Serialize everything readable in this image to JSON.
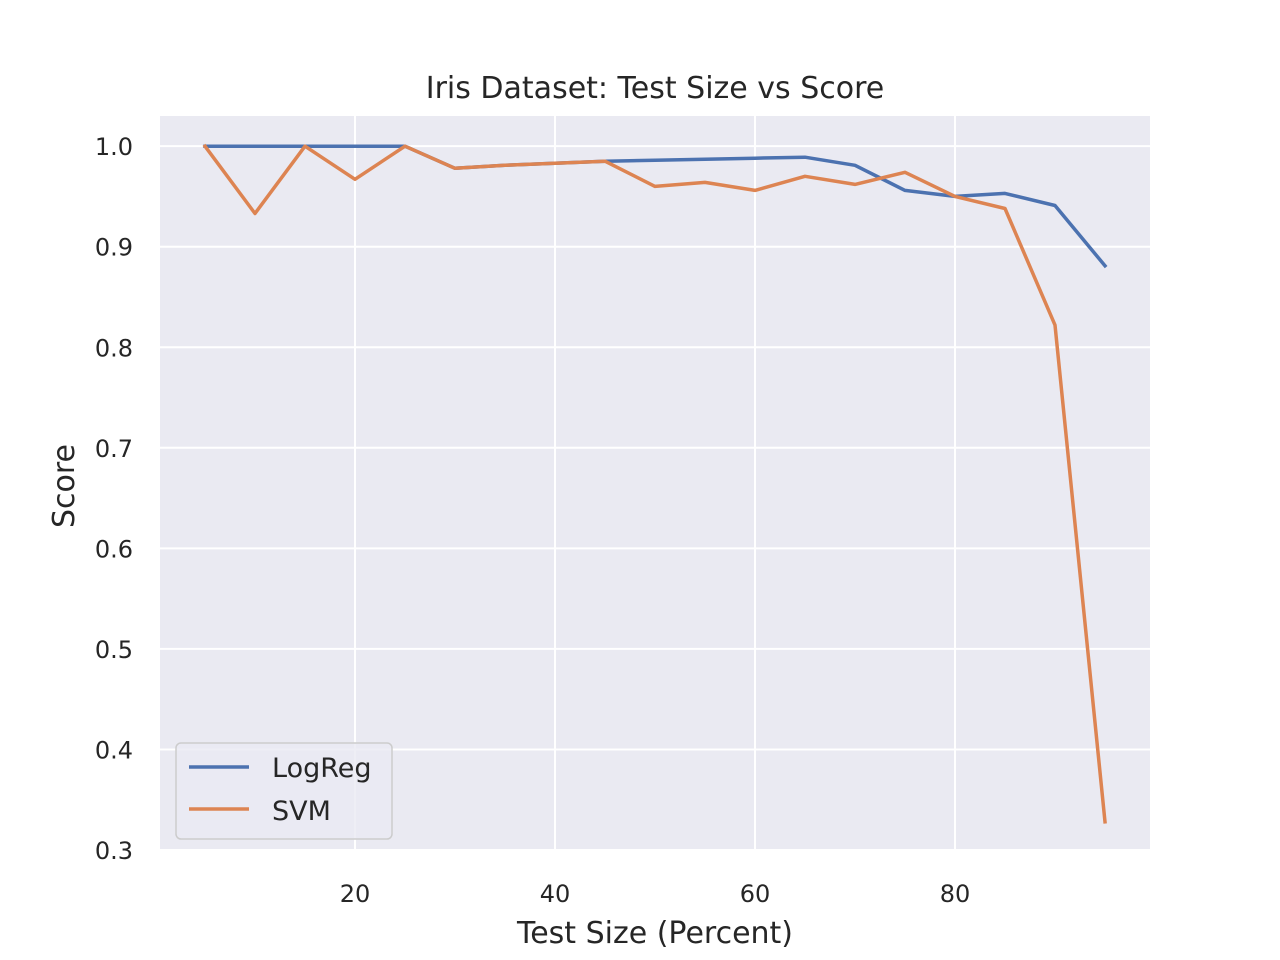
{
  "chart_data": {
    "type": "line",
    "title": "Iris Dataset:  Test Size vs Score",
    "xlabel": "Test Size (Percent)",
    "ylabel": "Score",
    "xlim": [
      0.5,
      99.5
    ],
    "ylim": [
      0.3,
      1.03
    ],
    "xticks": [
      20,
      40,
      60,
      80
    ],
    "yticks": [
      0.3,
      0.4,
      0.5,
      0.6,
      0.7,
      0.8,
      0.9,
      1.0
    ],
    "ytick_labels": [
      "0.3",
      "0.4",
      "0.5",
      "0.6",
      "0.7",
      "0.8",
      "0.9",
      "1.0"
    ],
    "grid": true,
    "legend": "lower-left",
    "x": [
      5,
      10,
      15,
      20,
      25,
      30,
      35,
      40,
      45,
      50,
      55,
      60,
      65,
      70,
      75,
      80,
      85,
      90,
      95
    ],
    "series": [
      {
        "name": "LogReg",
        "color": "#4c72b0",
        "values": [
          1.0,
          1.0,
          1.0,
          1.0,
          1.0,
          0.978,
          0.981,
          0.983,
          0.985,
          0.986,
          0.987,
          0.988,
          0.989,
          0.981,
          0.956,
          0.95,
          0.953,
          0.941,
          0.881
        ]
      },
      {
        "name": "SVM",
        "color": "#dd8452",
        "values": [
          1.0,
          0.933,
          1.0,
          0.967,
          1.0,
          0.978,
          0.981,
          0.983,
          0.985,
          0.96,
          0.964,
          0.956,
          0.97,
          0.962,
          0.974,
          0.95,
          0.938,
          0.822,
          0.328
        ]
      }
    ]
  }
}
